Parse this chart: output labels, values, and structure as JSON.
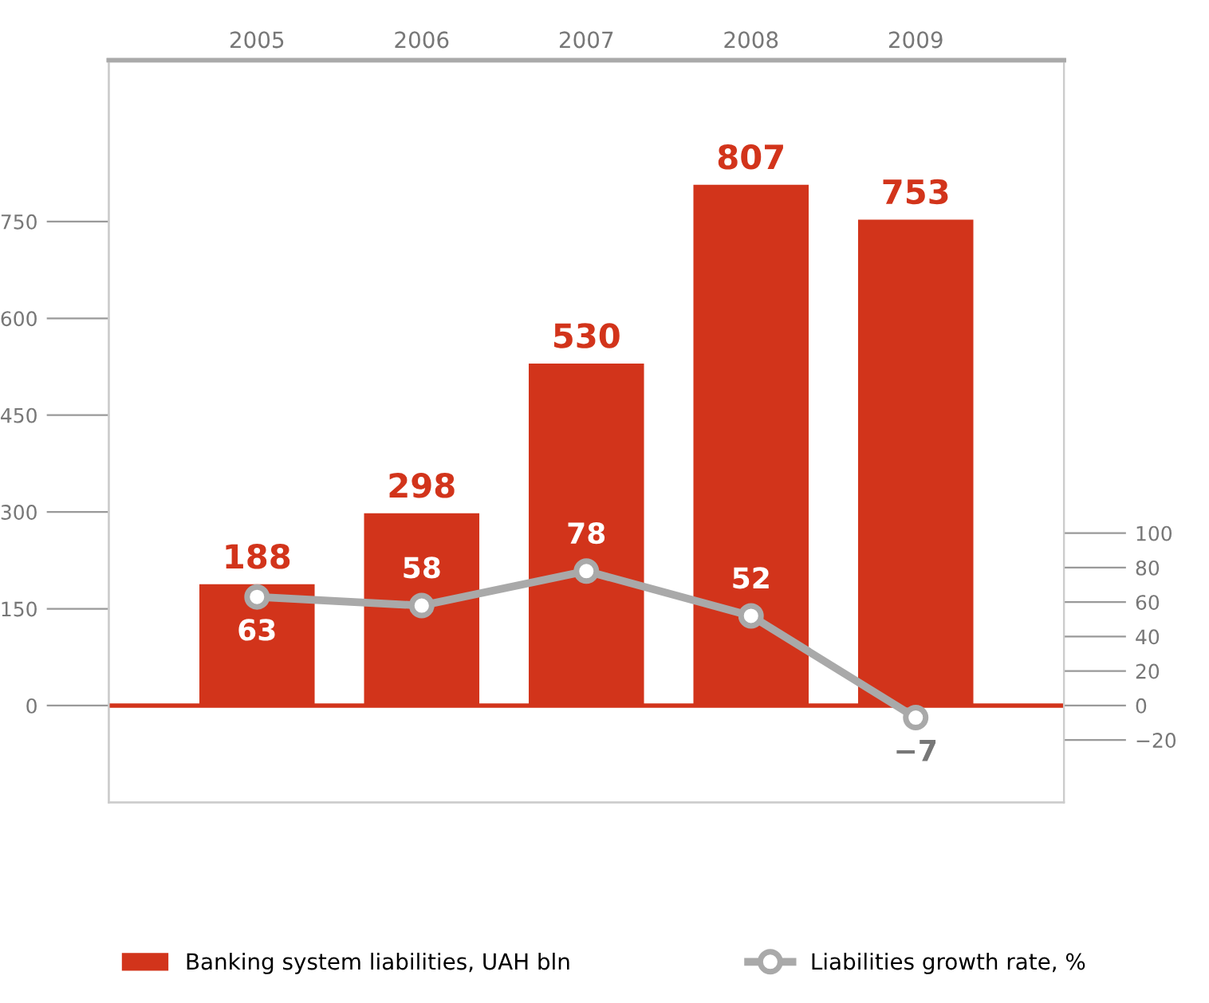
{
  "chart_data": {
    "type": "bar",
    "categories": [
      "2005",
      "2006",
      "2007",
      "2008",
      "2009"
    ],
    "series": [
      {
        "name": "Banking system liabilities, UAH bln",
        "color": "#d2341b",
        "values": [
          188,
          298,
          530,
          807,
          753
        ]
      },
      {
        "name": "Liabilities growth rate, %",
        "type": "line",
        "axis": "y2",
        "color": "#a9a9a9",
        "marker": "circle",
        "values": [
          63,
          58,
          78,
          52,
          -7
        ]
      }
    ],
    "ylim": [
      -150,
      1000
    ],
    "yticks": [
      0,
      150,
      300,
      450,
      600,
      750
    ],
    "y2lim": [
      -56.2,
      374.4
    ],
    "y2ticks": [
      {
        "value": -20,
        "label": "−20"
      },
      0,
      20,
      40,
      60,
      80,
      100
    ],
    "ref_lines": [
      {
        "axis": "y",
        "value": 0,
        "color": "#d2341b"
      }
    ],
    "data_labels": true,
    "grid": false,
    "legend": "bottom"
  }
}
